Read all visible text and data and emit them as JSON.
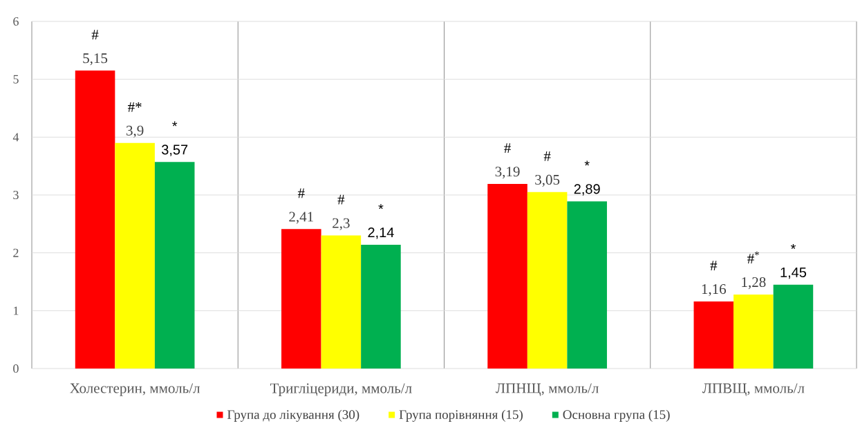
{
  "chart_data": {
    "type": "bar",
    "categories": [
      "Холестерин, ммоль/л",
      "Тригліцериди, ммоль/л",
      "ЛПНЩ, ммоль/л",
      "ЛПВЩ, ммоль/л"
    ],
    "series": [
      {
        "name": "Група до лікування (30)",
        "color": "#ff0000",
        "values": [
          5.15,
          2.41,
          3.19,
          1.16
        ],
        "value_labels": [
          "5,15",
          "2,41",
          "3,19",
          "1,16"
        ]
      },
      {
        "name": "Група порівняння (15)",
        "color": "#ffff00",
        "values": [
          3.9,
          2.3,
          3.05,
          1.28
        ],
        "value_labels": [
          "3,9",
          "2,3",
          "3,05",
          "1,28"
        ]
      },
      {
        "name": "Основна група (15)",
        "color": "#00b050",
        "values": [
          3.57,
          2.14,
          2.89,
          1.45
        ],
        "value_labels": [
          "3,57",
          "2,14",
          "2,89",
          "1,45"
        ]
      }
    ],
    "ylim": [
      0,
      6
    ],
    "yticks": [
      0,
      1,
      2,
      3,
      4,
      5,
      6
    ],
    "grid": true,
    "legend": "bottom",
    "annotations": [
      "#",
      "#*",
      "*",
      "#",
      "#",
      "*",
      "#",
      "#",
      "*",
      "#",
      "#$^{*}$",
      "*"
    ]
  }
}
